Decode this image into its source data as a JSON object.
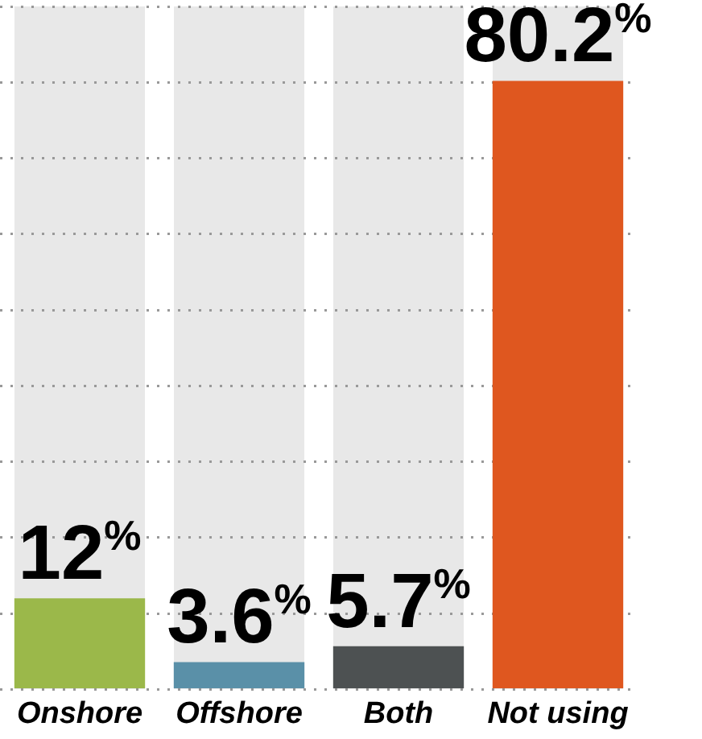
{
  "chart_data": {
    "type": "bar",
    "categories": [
      "Onshore",
      "Offshore",
      "Both",
      "Not using"
    ],
    "values": [
      12,
      3.6,
      5.7,
      80.2
    ],
    "colors": [
      "#9bb84a",
      "#5a90a8",
      "#4d5152",
      "#df571f"
    ],
    "value_labels": [
      "12%",
      "3.6%",
      "5.7%",
      "80.2%"
    ],
    "grid": "y",
    "tick_labels": "x",
    "legend": false
  }
}
